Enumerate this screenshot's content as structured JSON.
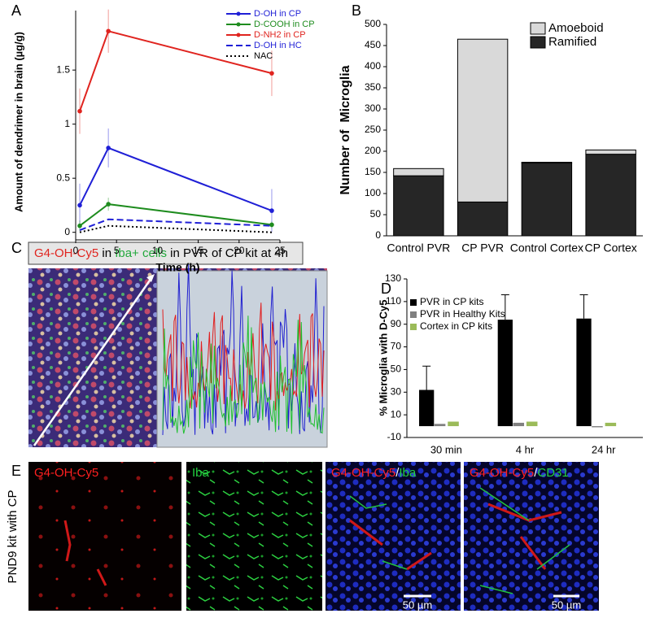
{
  "panel_labels": [
    "A",
    "B",
    "C",
    "D",
    "E"
  ],
  "chart_data": [
    {
      "type": "line",
      "xlabel": "Time (h)",
      "ylabel": "Amount of dendrimer in brain (µg/g)",
      "x": [
        0.5,
        4,
        24
      ],
      "xlim": [
        0,
        25
      ],
      "xticks": [
        0,
        5,
        10,
        15,
        20,
        25
      ],
      "ylim": [
        -0.07,
        2.05
      ],
      "yticks": [
        0,
        0.5,
        1,
        1.5
      ],
      "legend": "upper right",
      "series": [
        {
          "name": "D-OH in CP",
          "color": "#1f1fd6",
          "dash": "solid",
          "marker": true,
          "values": [
            0.25,
            0.78,
            0.2
          ],
          "errors": [
            0.2,
            0.18,
            0.2
          ]
        },
        {
          "name": "D-COOH in CP",
          "color": "#1e8c1e",
          "dash": "solid",
          "marker": true,
          "values": [
            0.06,
            0.26,
            0.07
          ],
          "errors": [
            0.05,
            0.06,
            0.03
          ]
        },
        {
          "name": "D-NH2 in CP",
          "color": "#e0241f",
          "dash": "solid",
          "marker": true,
          "values": [
            1.12,
            1.86,
            1.47
          ],
          "errors": [
            0.21,
            0.2,
            0.21
          ]
        },
        {
          "name": "D-OH in HC",
          "color": "#1f1fd6",
          "dash": "dashed",
          "marker": false,
          "values": [
            0.02,
            0.12,
            0.06
          ]
        },
        {
          "name": "NAC",
          "color": "#000000",
          "dash": "dotted",
          "marker": false,
          "values": [
            0,
            0.06,
            0
          ]
        }
      ]
    },
    {
      "type": "bar",
      "stacked": true,
      "ylabel": "Number of  Microglia",
      "categories": [
        "Control PVR",
        "CP PVR",
        "Control Cortex",
        "CP Cortex"
      ],
      "ylim": [
        0,
        500
      ],
      "yticks": [
        0,
        50,
        100,
        150,
        200,
        250,
        300,
        350,
        400,
        450,
        500
      ],
      "legend": "upper right",
      "series": [
        {
          "name": "Ramified",
          "color": "#262626",
          "values": [
            142,
            80,
            172,
            193
          ]
        },
        {
          "name": "Amoeboid",
          "color": "#d9d9d9",
          "values": [
            17,
            385,
            2,
            10
          ]
        }
      ]
    },
    {
      "type": "bar",
      "stacked": false,
      "ylabel": "% Microglia with D-Cy5",
      "categories": [
        "30 min",
        "4 hr",
        "24 hr"
      ],
      "ylim": [
        -10,
        130
      ],
      "yticks": [
        -10,
        10,
        30,
        50,
        70,
        90,
        110,
        130
      ],
      "legend": "upper left",
      "series": [
        {
          "name": "PVR in CP kits",
          "color": "#000000",
          "values": [
            32,
            94,
            95
          ],
          "errors": [
            21,
            22,
            21
          ]
        },
        {
          "name": "PVR in Healthy Kits",
          "color": "#808080",
          "values": [
            2,
            3,
            -1
          ]
        },
        {
          "name": "Cortex in CP kits",
          "color": "#9bbb59",
          "values": [
            4,
            4,
            3
          ]
        }
      ]
    }
  ],
  "panel_c": {
    "title_parts": [
      {
        "text": "G4-OH-Cy5",
        "color": "#e0241f"
      },
      {
        "text": " in ",
        "color": "#000000"
      },
      {
        "text": "Iba+ cells",
        "color": "#22a83c"
      },
      {
        "text": " in PVR of CP kit at 4h",
        "color": "#000000"
      }
    ]
  },
  "panel_e": {
    "row_label": "PND9 kit with CP",
    "scale_bar": "50 µm",
    "images": [
      {
        "label_parts": [
          {
            "text": "G4-OH-Cy5",
            "color": "#ff2020"
          }
        ]
      },
      {
        "label_parts": [
          {
            "text": "Iba",
            "color": "#22d040"
          }
        ]
      },
      {
        "label_parts": [
          {
            "text": "G4-OH-Cy5",
            "color": "#ff2020"
          },
          {
            "text": "/",
            "color": "#ffffff"
          },
          {
            "text": "Iba",
            "color": "#22d040"
          }
        ]
      },
      {
        "label_parts": [
          {
            "text": "G4-OH-Cy5",
            "color": "#ff2020"
          },
          {
            "text": "/",
            "color": "#ffffff"
          },
          {
            "text": "CD31",
            "color": "#22d040"
          }
        ]
      }
    ]
  }
}
